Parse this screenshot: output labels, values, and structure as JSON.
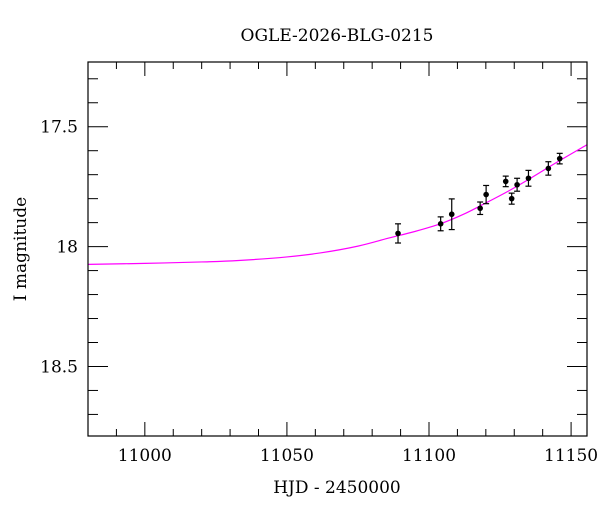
{
  "chart_data": {
    "type": "scatter",
    "title": "OGLE-2026-BLG-0215",
    "xlabel": "HJD - 2450000",
    "ylabel": "I magnitude",
    "xlim": [
      10980,
      11155.6
    ],
    "ylim": [
      17.23,
      18.79
    ],
    "y_inverted": true,
    "grid": false,
    "x_ticks": [
      11000,
      11050,
      11100,
      11150
    ],
    "x_tick_labels": [
      "11000",
      "11050",
      "11100",
      "11150"
    ],
    "y_ticks": [
      17.5,
      18,
      18.5
    ],
    "y_tick_labels": [
      "17.5",
      "18",
      "18.5"
    ],
    "x_minor_step": 10,
    "y_minor_step": 0.1,
    "series": [
      {
        "name": "data",
        "kind": "errorbar",
        "color": "#000000",
        "points": [
          {
            "t": 11089.1,
            "mag": 17.945,
            "err": 0.04
          },
          {
            "t": 11104.1,
            "mag": 17.905,
            "err": 0.029
          },
          {
            "t": 11108.0,
            "mag": 17.865,
            "err": 0.064
          },
          {
            "t": 11118.0,
            "mag": 17.84,
            "err": 0.026
          },
          {
            "t": 11120.1,
            "mag": 17.783,
            "err": 0.038
          },
          {
            "t": 11127.0,
            "mag": 17.728,
            "err": 0.022
          },
          {
            "t": 11129.1,
            "mag": 17.8,
            "err": 0.023
          },
          {
            "t": 11131.0,
            "mag": 17.742,
            "err": 0.027
          },
          {
            "t": 11135.0,
            "mag": 17.715,
            "err": 0.033
          },
          {
            "t": 11142.0,
            "mag": 17.674,
            "err": 0.028
          },
          {
            "t": 11146.0,
            "mag": 17.633,
            "err": 0.022
          }
        ]
      },
      {
        "name": "model",
        "kind": "line",
        "color": "#ff00ff",
        "points": [
          [
            10980,
            18.074
          ],
          [
            11000,
            18.07
          ],
          [
            11020,
            18.064
          ],
          [
            11033,
            18.058
          ],
          [
            11050,
            18.043
          ],
          [
            11062,
            18.026
          ],
          [
            11075,
            17.998
          ],
          [
            11086,
            17.964
          ],
          [
            11095,
            17.937
          ],
          [
            11104,
            17.905
          ],
          [
            11112,
            17.866
          ],
          [
            11120,
            17.818
          ],
          [
            11128,
            17.768
          ],
          [
            11135,
            17.72
          ],
          [
            11145,
            17.648
          ],
          [
            11155.6,
            17.575
          ]
        ]
      }
    ]
  }
}
